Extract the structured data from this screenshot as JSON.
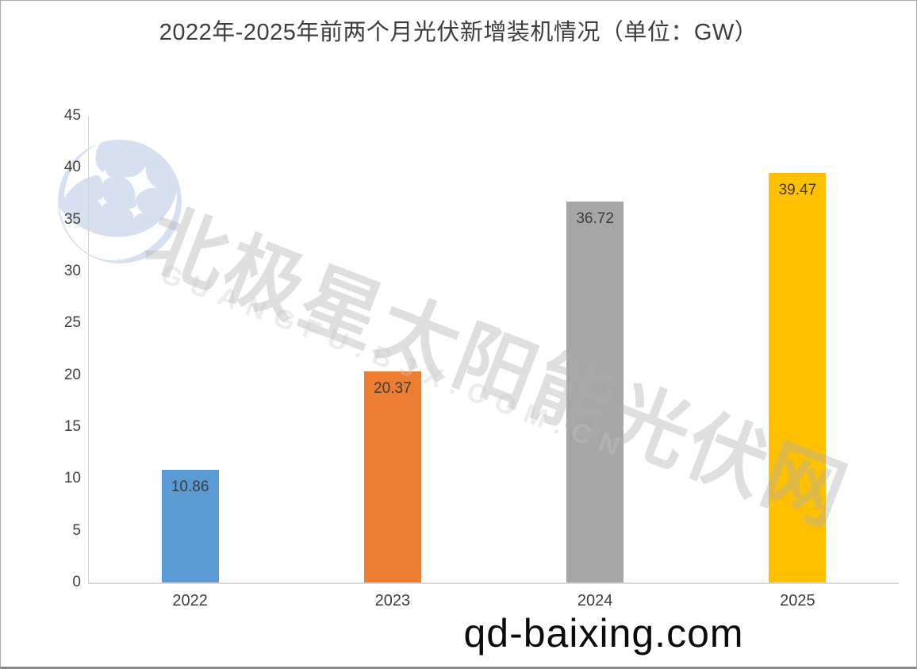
{
  "title": "2022年-2025年前两个月光伏新增装机情况（单位：GW）",
  "chart_data": {
    "type": "bar",
    "title": "2022年-2025年前两个月光伏新增装机情况（单位：GW）",
    "unit": "GW",
    "categories": [
      "2022",
      "2023",
      "2024",
      "2025"
    ],
    "values": [
      10.86,
      20.37,
      36.72,
      39.47
    ],
    "data_labels": [
      "10.86",
      "20.37",
      "36.72",
      "39.47"
    ],
    "bar_colors": [
      "#5B9BD5",
      "#ED7D31",
      "#A6A6A6",
      "#FFC000"
    ],
    "xlabel": "",
    "ylabel": "",
    "ylim": [
      0,
      45
    ],
    "yticks": [
      0,
      5,
      10,
      15,
      20,
      25,
      30,
      35,
      40,
      45
    ],
    "grid": false,
    "legend_position": "none"
  },
  "watermark": {
    "chinese": "北极星太阳能光伏网",
    "latin": "GUANGFU.BJX.COM.CN"
  },
  "footer": {
    "site": "qd-baixing.com"
  },
  "logo": {
    "name": "bjx-polaris-star-logo",
    "circle_color": "#d6e0f0"
  },
  "colors": {
    "title_text": "#3d3d3d",
    "axis_line": "#d4d4d4",
    "tick_text": "#404040",
    "footer_text": "#0b0b0b"
  }
}
